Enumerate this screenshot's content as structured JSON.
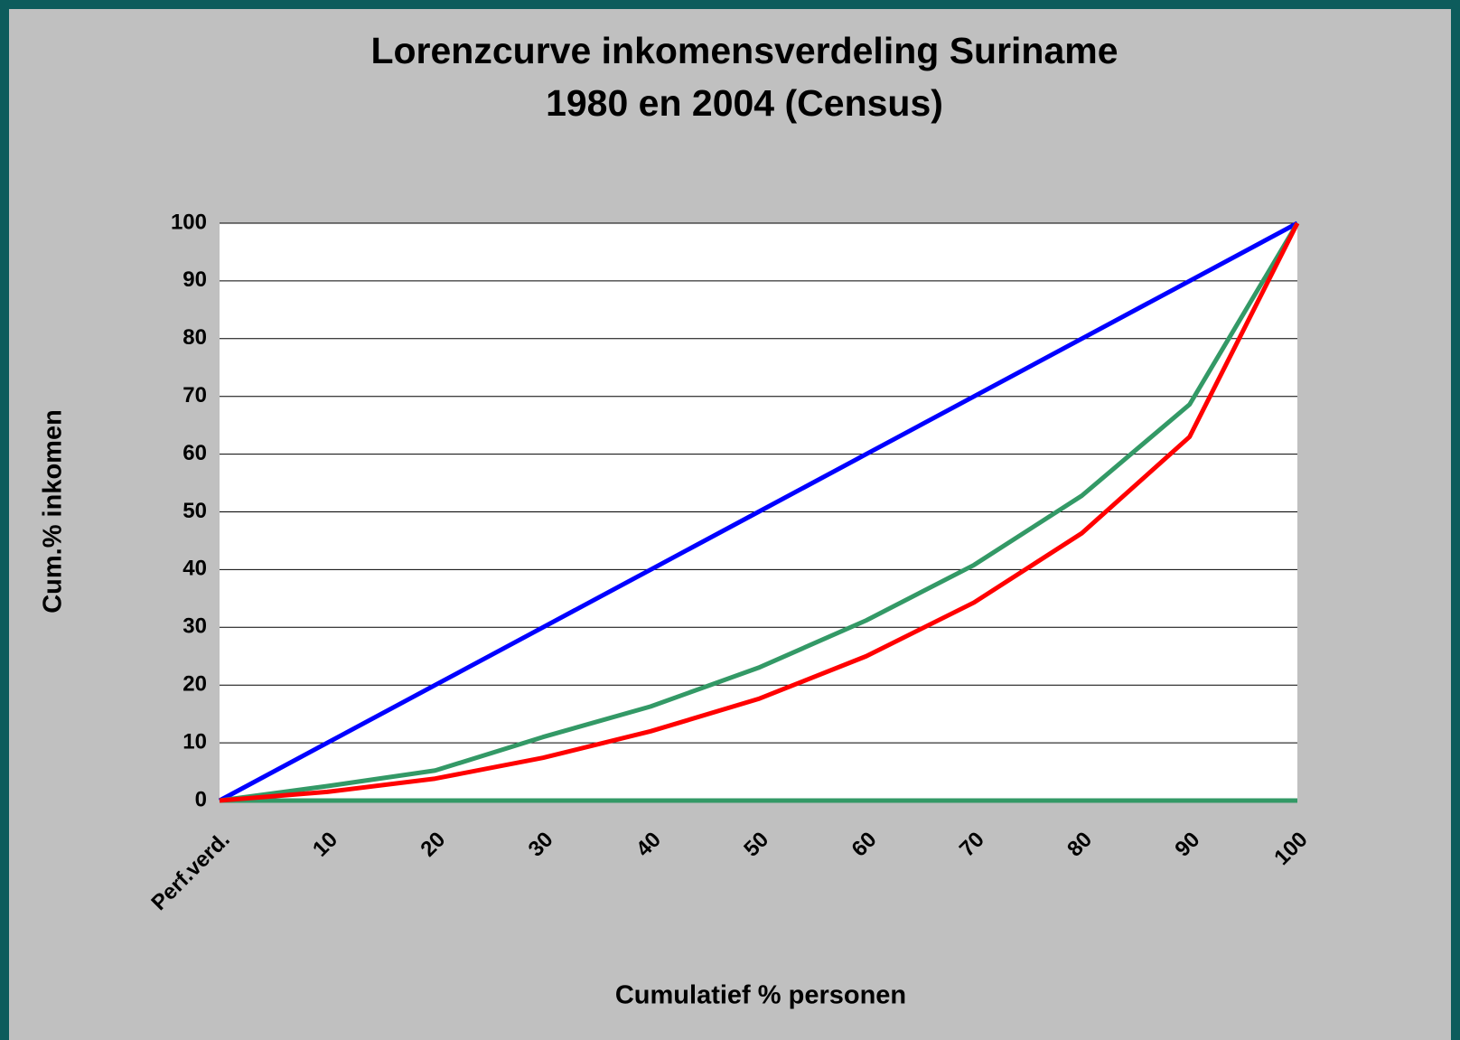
{
  "chart_data": {
    "type": "line",
    "title": [
      "Lorenzcurve inkomensverdeling Suriname",
      "1980 en 2004 (Census)"
    ],
    "x_label": "Cumulatief % personen",
    "y_label": "Cum.% inkomen",
    "categories": [
      "Perf.verd.",
      "10",
      "20",
      "30",
      "40",
      "50",
      "60",
      "70",
      "80",
      "90",
      "100"
    ],
    "series": [
      {
        "color": "#339966",
        "values": [
          0,
          0,
          0,
          0,
          0,
          0,
          0,
          0,
          0,
          0,
          0
        ]
      },
      {
        "color": "#0000ff",
        "values": [
          0,
          10,
          20,
          30,
          40,
          50,
          60,
          70,
          80,
          90,
          100
        ]
      },
      {
        "color": "#339966",
        "values": [
          0,
          2.5,
          5.2,
          11,
          16.3,
          23,
          31.2,
          40.8,
          52.8,
          68.6,
          100
        ]
      },
      {
        "color": "#ff0000",
        "values": [
          0,
          1.5,
          3.8,
          7.4,
          12,
          17.6,
          25,
          34.3,
          46.3,
          63,
          100
        ]
      }
    ],
    "ylim": [
      0,
      100
    ],
    "yticks": [
      0,
      10,
      20,
      30,
      40,
      50,
      60,
      70,
      80,
      90,
      100
    ],
    "grid": true
  }
}
